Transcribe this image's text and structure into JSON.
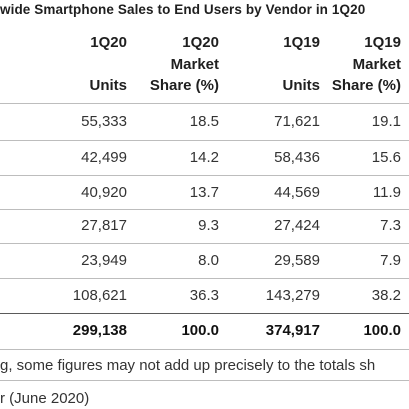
{
  "title": "wide Smartphone Sales to End Users by Vendor in 1Q20",
  "columns": [
    {
      "line1": "1Q20",
      "line2": "",
      "line3": "Units"
    },
    {
      "line1": "1Q20",
      "line2": "Market",
      "line3": "Share (%)"
    },
    {
      "line1": "1Q19",
      "line2": "",
      "line3": "Units"
    },
    {
      "line1": "1Q19",
      "line2": "Market",
      "line3": "Share (%)"
    }
  ],
  "rows": [
    [
      "55,333",
      "18.5",
      "71,621",
      "19.1"
    ],
    [
      "42,499",
      "14.2",
      "58,436",
      "15.6"
    ],
    [
      "40,920",
      "13.7",
      "44,569",
      "11.9"
    ],
    [
      "27,817",
      "9.3",
      "27,424",
      "7.3"
    ],
    [
      "23,949",
      "8.0",
      "29,589",
      "7.9"
    ],
    [
      "108,621",
      "36.3",
      "143,279",
      "38.2"
    ]
  ],
  "total": [
    "299,138",
    "100.0",
    "374,917",
    "100.0"
  ],
  "footnote": "g, some figures may not add up precisely to the totals sh",
  "source": "r (June 2020)"
}
